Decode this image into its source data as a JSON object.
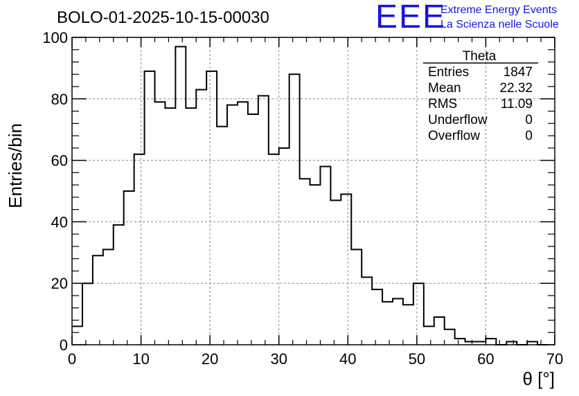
{
  "chart_data": {
    "type": "histogram",
    "title": "BOLO-01-2025-10-15-00030",
    "xlabel": "θ [°]",
    "ylabel": "Entries/bin",
    "xlim": [
      0,
      70
    ],
    "ylim": [
      0,
      100
    ],
    "xticks": [
      "0",
      "10",
      "20",
      "30",
      "40",
      "50",
      "60",
      "70"
    ],
    "yticks": [
      "0",
      "20",
      "40",
      "60",
      "80",
      "100"
    ],
    "grid": true,
    "line_color": "#000000",
    "bin_width": 1.5,
    "bin_edges_start": 0,
    "values": [
      6,
      20,
      29,
      31,
      39,
      50,
      62,
      89,
      79,
      77,
      97,
      77,
      83,
      89,
      71,
      78,
      79,
      75,
      81,
      62,
      64,
      88,
      54,
      52,
      58,
      47,
      49,
      31,
      22,
      18,
      14,
      15,
      13,
      20,
      6,
      9,
      5,
      2,
      1,
      1,
      2,
      0,
      1,
      0,
      1,
      0
    ]
  },
  "stats_box": {
    "title": "Theta",
    "rows": [
      {
        "label": "Entries",
        "value": "1847"
      },
      {
        "label": "Mean",
        "value": "22.32"
      },
      {
        "label": "RMS",
        "value": "11.09"
      },
      {
        "label": "Underflow",
        "value": "0"
      },
      {
        "label": "Overflow",
        "value": "0"
      }
    ]
  },
  "logo": {
    "mark": "EEE",
    "line1": "Extreme Energy Events",
    "line2": "La Scienza nelle Scuole",
    "color": "#1515e0"
  }
}
